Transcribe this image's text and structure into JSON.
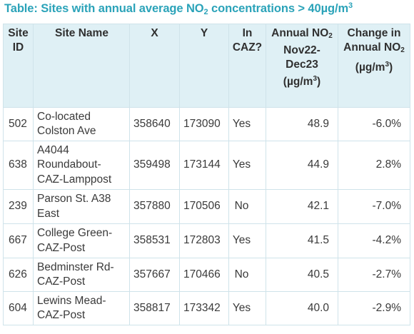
{
  "title": {
    "prefix": "Table: Sites with annual average NO",
    "prefix_sub": "2",
    "middle": " concentrations > 40µg/m",
    "middle_sup": "3"
  },
  "headers": {
    "site_id": "Site ID",
    "site_name": "Site Name",
    "x": "X",
    "y": "Y",
    "in_caz": "In CAZ?",
    "annual_no2_a": "Annual NO",
    "annual_no2_sub": "2",
    "annual_no2_b": "Nov22-Dec23 (µg/m",
    "annual_no2_sup": "3",
    "annual_no2_c": ")",
    "change_a": "Change in Annual NO",
    "change_sub": "2",
    "change_b": "(µg/m",
    "change_sup": "3",
    "change_c": ")"
  },
  "rows": [
    {
      "site_id": "502",
      "site_name": "Co-located Colston Ave",
      "x": "358640",
      "y": "173090",
      "in_caz": "Yes",
      "annual_no2": "48.9",
      "change": "-6.0%"
    },
    {
      "site_id": "638",
      "site_name": "A4044 Roundabout-CAZ-Lamppost",
      "x": "359498",
      "y": "173144",
      "in_caz": "Yes",
      "annual_no2": "44.9",
      "change": "2.8%"
    },
    {
      "site_id": "239",
      "site_name": "Parson St. A38 East",
      "x": "357880",
      "y": "170506",
      "in_caz": "No",
      "annual_no2": "42.1",
      "change": "-7.0%"
    },
    {
      "site_id": "667",
      "site_name": "College Green-CAZ-Post",
      "x": "358531",
      "y": "172803",
      "in_caz": "Yes",
      "annual_no2": "41.5",
      "change": "-4.2%"
    },
    {
      "site_id": "626",
      "site_name": "Bedminster Rd-CAZ-Post",
      "x": "357667",
      "y": "170466",
      "in_caz": "No",
      "annual_no2": "40.5",
      "change": "-2.7%"
    },
    {
      "site_id": "604",
      "site_name": "Lewins Mead-CAZ-Post",
      "x": "358817",
      "y": "173342",
      "in_caz": "Yes",
      "annual_no2": "40.0",
      "change": "-2.9%"
    }
  ],
  "colors": {
    "title": "#2ba3b9",
    "header_bg": "#dff0f5",
    "border": "#cfe3ea"
  }
}
